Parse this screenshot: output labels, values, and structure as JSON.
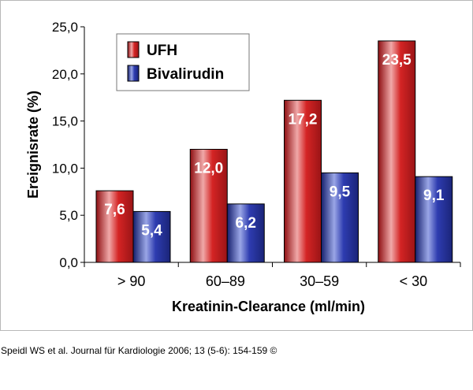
{
  "chart_data": {
    "type": "bar",
    "categories": [
      "> 90",
      "60–89",
      "30–59",
      "< 30"
    ],
    "series": [
      {
        "name": "UFH",
        "values": [
          7.6,
          12.0,
          17.2,
          23.5
        ],
        "labels": [
          "7,6",
          "12,0",
          "17,2",
          "23,5"
        ],
        "color": "#cc1f1f"
      },
      {
        "name": "Bivalirudin",
        "values": [
          5.4,
          6.2,
          9.5,
          9.1
        ],
        "labels": [
          "5,4",
          "6,2",
          "9,5",
          "9,1"
        ],
        "color": "#2a3aa6"
      }
    ],
    "xlabel": "Kreatinin-Clearance (ml/min)",
    "ylabel": "Ereignisrate (%)",
    "ylim": [
      0,
      25
    ],
    "yticks": [
      0,
      5,
      10,
      15,
      20,
      25
    ],
    "ytick_labels": [
      "0,0",
      "5,0",
      "10,0",
      "15,0",
      "20,0",
      "25,0"
    ],
    "legend_position": "top-left",
    "grid": false
  },
  "citation": "Speidl WS et al. Journal für Kardiologie 2006; 13 (5-6): 154-159 ©"
}
